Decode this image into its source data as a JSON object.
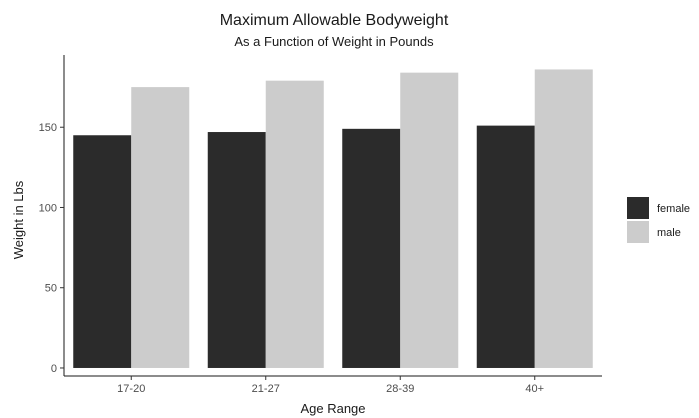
{
  "chart_data": {
    "type": "bar",
    "title": "Maximum Allowable Bodyweight",
    "subtitle": "As a Function of Weight in Pounds",
    "xlabel": "Age Range",
    "ylabel": "Weight in Lbs",
    "categories": [
      "17-20",
      "21-27",
      "28-39",
      "40+"
    ],
    "series": [
      {
        "name": "female",
        "values": [
          145,
          147,
          149,
          151
        ],
        "color": "#2b2b2b"
      },
      {
        "name": "male",
        "values": [
          175,
          179,
          184,
          186
        ],
        "color": "#cccccc"
      }
    ],
    "yticks": [
      0,
      50,
      100,
      150
    ],
    "ylim": [
      -5,
      195
    ],
    "grid": false,
    "legend_position": "right"
  }
}
